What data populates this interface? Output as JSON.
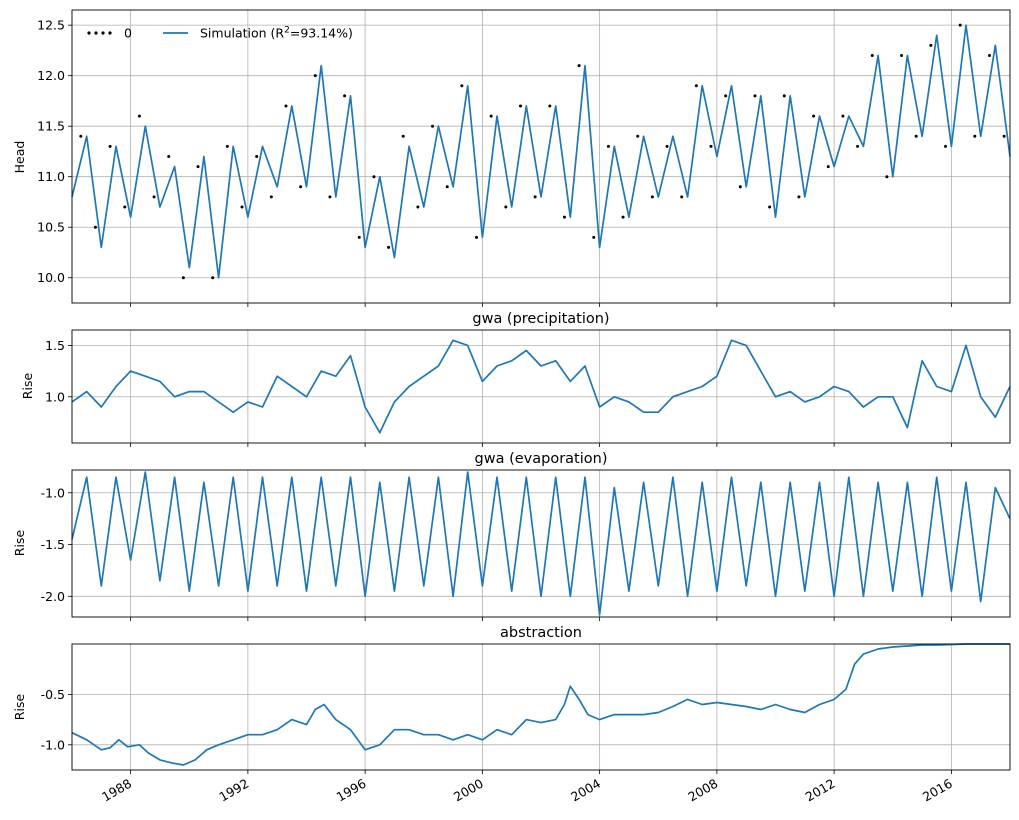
{
  "chart_data": [
    {
      "type": "scatter+line",
      "title": "",
      "ylabel": "Head",
      "ylim": [
        9.75,
        12.65
      ],
      "yticks": [
        "10.0",
        "10.5",
        "11.0",
        "11.5",
        "12.0",
        "12.5"
      ],
      "xlim_year": [
        1986.0,
        2018.0
      ],
      "legend": {
        "placement": "top-left",
        "entries": [
          "0",
          "Simulation ($R^2$=93.14%)"
        ],
        "entry_text": [
          "0",
          "Simulation (R",
          "2",
          "=93.14%)"
        ]
      },
      "series": [
        {
          "name": "0",
          "kind": "observations",
          "color": "#000000",
          "x": [
            1986.3,
            1986.8,
            1987.3,
            1987.8,
            1988.3,
            1988.8,
            1989.3,
            1989.8,
            1990.3,
            1990.8,
            1991.3,
            1991.8,
            1992.3,
            1992.8,
            1993.3,
            1993.8,
            1994.3,
            1994.8,
            1995.3,
            1995.8,
            1996.3,
            1996.8,
            1997.3,
            1997.8,
            1998.3,
            1998.8,
            1999.3,
            1999.8,
            2000.3,
            2000.8,
            2001.3,
            2001.8,
            2002.3,
            2002.8,
            2003.3,
            2003.8,
            2004.3,
            2004.8,
            2005.3,
            2005.8,
            2006.3,
            2006.8,
            2007.3,
            2007.8,
            2008.3,
            2008.8,
            2009.3,
            2009.8,
            2010.3,
            2010.8,
            2011.3,
            2011.8,
            2012.3,
            2012.8,
            2013.3,
            2013.8,
            2014.3,
            2014.8,
            2015.3,
            2015.8,
            2016.3,
            2016.8,
            2017.3,
            2017.8
          ],
          "y": [
            11.4,
            10.5,
            11.3,
            10.7,
            11.6,
            10.8,
            11.2,
            10.0,
            11.1,
            10.0,
            11.3,
            10.7,
            11.2,
            10.8,
            11.7,
            10.9,
            12.0,
            10.8,
            11.8,
            10.4,
            11.0,
            10.3,
            11.4,
            10.7,
            11.5,
            10.9,
            11.9,
            10.4,
            11.6,
            10.7,
            11.7,
            10.8,
            11.7,
            10.6,
            12.1,
            10.4,
            11.3,
            10.6,
            11.4,
            10.8,
            11.3,
            10.8,
            11.9,
            11.3,
            11.8,
            10.9,
            11.8,
            10.7,
            11.8,
            10.8,
            11.6,
            11.1,
            11.6,
            11.3,
            12.2,
            11.0,
            12.2,
            11.4,
            12.3,
            11.3,
            12.5,
            11.4,
            12.2,
            11.4
          ]
        },
        {
          "name": "Simulation ($R^2$=93.14%)",
          "kind": "simulation",
          "color": "#1f77b4",
          "x": [
            1986.0,
            1986.5,
            1987.0,
            1987.5,
            1988.0,
            1988.5,
            1989.0,
            1989.5,
            1990.0,
            1990.5,
            1991.0,
            1991.5,
            1992.0,
            1992.5,
            1993.0,
            1993.5,
            1994.0,
            1994.5,
            1995.0,
            1995.5,
            1996.0,
            1996.5,
            1997.0,
            1997.5,
            1998.0,
            1998.5,
            1999.0,
            1999.5,
            2000.0,
            2000.5,
            2001.0,
            2001.5,
            2002.0,
            2002.5,
            2003.0,
            2003.5,
            2004.0,
            2004.5,
            2005.0,
            2005.5,
            2006.0,
            2006.5,
            2007.0,
            2007.5,
            2008.0,
            2008.5,
            2009.0,
            2009.5,
            2010.0,
            2010.5,
            2011.0,
            2011.5,
            2012.0,
            2012.5,
            2013.0,
            2013.5,
            2014.0,
            2014.5,
            2015.0,
            2015.5,
            2016.0,
            2016.5,
            2017.0,
            2017.5,
            2018.0
          ],
          "y": [
            10.8,
            11.4,
            10.3,
            11.3,
            10.6,
            11.5,
            10.7,
            11.1,
            10.1,
            11.2,
            10.0,
            11.3,
            10.6,
            11.3,
            10.9,
            11.7,
            10.9,
            12.1,
            10.8,
            11.8,
            10.3,
            11.0,
            10.2,
            11.3,
            10.7,
            11.5,
            10.9,
            11.9,
            10.4,
            11.6,
            10.7,
            11.7,
            10.8,
            11.7,
            10.6,
            12.1,
            10.3,
            11.3,
            10.6,
            11.4,
            10.8,
            11.4,
            10.8,
            11.9,
            11.2,
            11.9,
            10.9,
            11.8,
            10.6,
            11.8,
            10.8,
            11.6,
            11.1,
            11.6,
            11.3,
            12.2,
            11.0,
            12.2,
            11.4,
            12.4,
            11.3,
            12.5,
            11.4,
            12.3,
            11.2
          ]
        }
      ],
      "grid": true
    },
    {
      "type": "line",
      "title": "gwa (precipitation)",
      "ylabel": "Rise",
      "ylim": [
        0.55,
        1.65
      ],
      "yticks": [
        "1.0",
        "1.5"
      ],
      "xlim_year": [
        1986.0,
        2018.0
      ],
      "series": [
        {
          "color": "#1f77b4",
          "x": [
            1986.0,
            1986.5,
            1987.0,
            1987.5,
            1988.0,
            1988.5,
            1989.0,
            1989.5,
            1990.0,
            1990.5,
            1991.0,
            1991.5,
            1992.0,
            1992.5,
            1993.0,
            1993.5,
            1994.0,
            1994.5,
            1995.0,
            1995.5,
            1996.0,
            1996.5,
            1997.0,
            1997.5,
            1998.0,
            1998.5,
            1999.0,
            1999.5,
            2000.0,
            2000.5,
            2001.0,
            2001.5,
            2002.0,
            2002.5,
            2003.0,
            2003.5,
            2004.0,
            2004.5,
            2005.0,
            2005.5,
            2006.0,
            2006.5,
            2007.0,
            2007.5,
            2008.0,
            2008.5,
            2009.0,
            2009.5,
            2010.0,
            2010.5,
            2011.0,
            2011.5,
            2012.0,
            2012.5,
            2013.0,
            2013.5,
            2014.0,
            2014.5,
            2015.0,
            2015.5,
            2016.0,
            2016.5,
            2017.0,
            2017.5,
            2018.0
          ],
          "y": [
            0.95,
            1.05,
            0.9,
            1.1,
            1.25,
            1.2,
            1.15,
            1.0,
            1.05,
            1.05,
            0.95,
            0.85,
            0.95,
            0.9,
            1.2,
            1.1,
            1.0,
            1.25,
            1.2,
            1.4,
            0.9,
            0.65,
            0.95,
            1.1,
            1.2,
            1.3,
            1.55,
            1.5,
            1.15,
            1.3,
            1.35,
            1.45,
            1.3,
            1.35,
            1.15,
            1.3,
            0.9,
            1.0,
            0.95,
            0.85,
            0.85,
            1.0,
            1.05,
            1.1,
            1.2,
            1.55,
            1.5,
            1.25,
            1.0,
            1.05,
            0.95,
            1.0,
            1.1,
            1.05,
            0.9,
            1.0,
            1.0,
            0.7,
            1.35,
            1.1,
            1.05,
            1.5,
            1.0,
            0.8,
            1.1
          ]
        }
      ],
      "grid": true
    },
    {
      "type": "line",
      "title": "gwa (evaporation)",
      "ylabel": "Rise",
      "ylim": [
        -2.2,
        -0.78
      ],
      "yticks": [
        "-1.0",
        "-1.5",
        "-2.0"
      ],
      "xlim_year": [
        1986.0,
        2018.0
      ],
      "series": [
        {
          "color": "#1f77b4",
          "description_kind": "seasonal",
          "x": [
            1986.0,
            1986.5,
            1987.0,
            1987.5,
            1988.0,
            1988.5,
            1989.0,
            1989.5,
            1990.0,
            1990.5,
            1991.0,
            1991.5,
            1992.0,
            1992.5,
            1993.0,
            1993.5,
            1994.0,
            1994.5,
            1995.0,
            1995.5,
            1996.0,
            1996.5,
            1997.0,
            1997.5,
            1998.0,
            1998.5,
            1999.0,
            1999.5,
            2000.0,
            2000.5,
            2001.0,
            2001.5,
            2002.0,
            2002.5,
            2003.0,
            2003.5,
            2004.0,
            2004.5,
            2005.0,
            2005.5,
            2006.0,
            2006.5,
            2007.0,
            2007.5,
            2008.0,
            2008.5,
            2009.0,
            2009.5,
            2010.0,
            2010.5,
            2011.0,
            2011.5,
            2012.0,
            2012.5,
            2013.0,
            2013.5,
            2014.0,
            2014.5,
            2015.0,
            2015.5,
            2016.0,
            2016.5,
            2017.0,
            2017.5,
            2018.0
          ],
          "y": [
            -1.45,
            -0.85,
            -1.9,
            -0.85,
            -1.65,
            -0.8,
            -1.85,
            -0.85,
            -1.95,
            -0.9,
            -1.9,
            -0.85,
            -1.95,
            -0.85,
            -1.9,
            -0.85,
            -1.95,
            -0.85,
            -1.9,
            -0.85,
            -2.0,
            -0.9,
            -1.95,
            -0.85,
            -1.9,
            -0.85,
            -2.0,
            -0.8,
            -1.9,
            -0.85,
            -1.95,
            -0.85,
            -2.0,
            -0.85,
            -2.0,
            -0.85,
            -2.18,
            -0.95,
            -1.95,
            -0.9,
            -1.9,
            -0.85,
            -2.0,
            -0.9,
            -1.95,
            -0.85,
            -1.9,
            -0.9,
            -2.0,
            -0.9,
            -1.95,
            -0.9,
            -2.0,
            -0.85,
            -2.0,
            -0.9,
            -1.95,
            -0.9,
            -2.0,
            -0.85,
            -1.95,
            -0.9,
            -2.05,
            -0.95,
            -1.25
          ]
        }
      ],
      "grid": true
    },
    {
      "type": "line",
      "title": "abstraction",
      "ylabel": "Rise",
      "ylim": [
        -1.25,
        -0.0
      ],
      "yticks": [
        "-0.5",
        "-1.0"
      ],
      "xlim_year": [
        1986.0,
        2018.0
      ],
      "xticks": [
        "1988",
        "1992",
        "1996",
        "2000",
        "2004",
        "2008",
        "2012",
        "2016"
      ],
      "series": [
        {
          "color": "#1f77b4",
          "x": [
            1986.0,
            1986.5,
            1987.0,
            1987.3,
            1987.6,
            1987.9,
            1988.3,
            1988.6,
            1989.0,
            1989.4,
            1989.8,
            1990.2,
            1990.6,
            1991.0,
            1991.5,
            1992.0,
            1992.5,
            1993.0,
            1993.5,
            1994.0,
            1994.3,
            1994.6,
            1995.0,
            1995.5,
            1996.0,
            1996.5,
            1997.0,
            1997.5,
            1998.0,
            1998.5,
            1999.0,
            1999.5,
            2000.0,
            2000.5,
            2001.0,
            2001.5,
            2002.0,
            2002.5,
            2002.8,
            2003.0,
            2003.3,
            2003.6,
            2004.0,
            2004.5,
            2005.0,
            2005.5,
            2006.0,
            2006.5,
            2007.0,
            2007.5,
            2008.0,
            2008.5,
            2009.0,
            2009.5,
            2010.0,
            2010.5,
            2011.0,
            2011.5,
            2012.0,
            2012.2,
            2012.4,
            2012.7,
            2013.0,
            2013.5,
            2014.0,
            2014.5,
            2015.0,
            2015.5,
            2016.0,
            2016.5,
            2017.0,
            2017.5,
            2018.0
          ],
          "y": [
            -0.88,
            -0.95,
            -1.05,
            -1.03,
            -0.95,
            -1.02,
            -1.0,
            -1.08,
            -1.15,
            -1.18,
            -1.2,
            -1.15,
            -1.05,
            -1.0,
            -0.95,
            -0.9,
            -0.9,
            -0.85,
            -0.75,
            -0.8,
            -0.65,
            -0.6,
            -0.75,
            -0.85,
            -1.05,
            -1.0,
            -0.85,
            -0.85,
            -0.9,
            -0.9,
            -0.95,
            -0.9,
            -0.95,
            -0.85,
            -0.9,
            -0.75,
            -0.78,
            -0.75,
            -0.6,
            -0.42,
            -0.55,
            -0.7,
            -0.75,
            -0.7,
            -0.7,
            -0.7,
            -0.68,
            -0.62,
            -0.55,
            -0.6,
            -0.58,
            -0.6,
            -0.62,
            -0.65,
            -0.6,
            -0.65,
            -0.68,
            -0.6,
            -0.55,
            -0.5,
            -0.45,
            -0.2,
            -0.1,
            -0.05,
            -0.03,
            -0.02,
            -0.01,
            -0.01,
            -0.005,
            0.0,
            0.0,
            0.0,
            0.0
          ]
        }
      ],
      "grid": true
    }
  ]
}
